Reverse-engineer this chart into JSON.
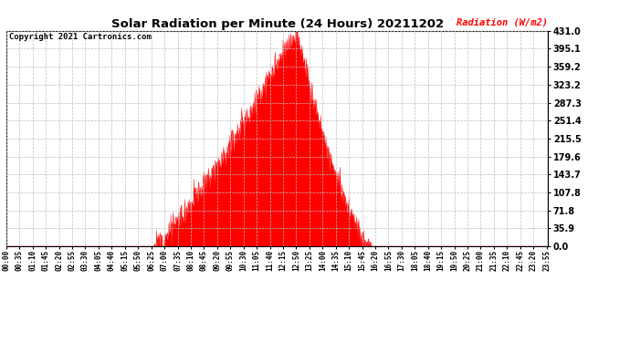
{
  "title": "Solar Radiation per Minute (24 Hours) 20211202",
  "copyright_text": "Copyright 2021 Cartronics.com",
  "ylabel": "Radiation (W/m2)",
  "ylabel_color": "red",
  "background_color": "white",
  "fill_color": "red",
  "line_color": "red",
  "ytick_labels": [
    0.0,
    35.9,
    71.8,
    107.8,
    143.7,
    179.6,
    215.5,
    251.4,
    287.3,
    323.2,
    359.2,
    395.1,
    431.0
  ],
  "ymax": 431.0,
  "ymin": 0.0,
  "grid_color": "#bbbbbb",
  "dashed_zero_color": "red",
  "num_minutes": 1440,
  "sunrise_minute": 390,
  "sunset_minute": 970,
  "peak_minute": 770,
  "peak_value": 431.0,
  "xtick_step": 35
}
